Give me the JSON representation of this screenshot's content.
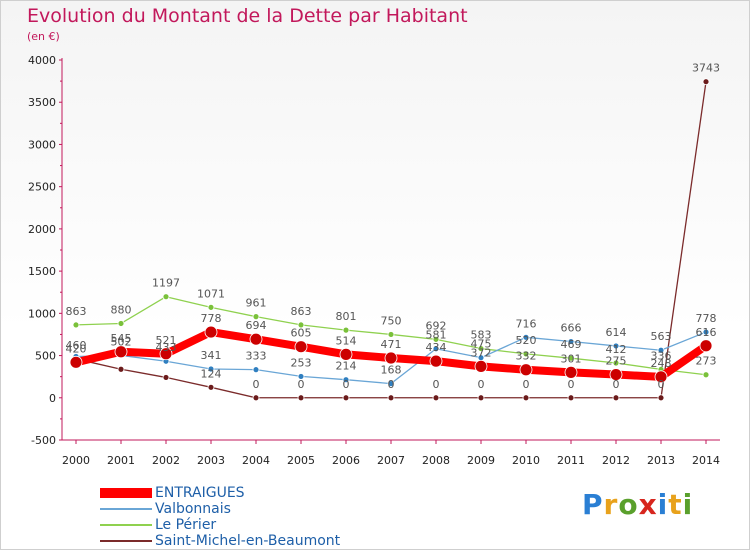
{
  "title": "Evolution du Montant de la Dette par Habitant",
  "subtitle": "(en €)",
  "logo": {
    "text": "Proxiti",
    "letters": [
      "P",
      "r",
      "o",
      "x",
      "i",
      "t",
      "i"
    ],
    "colors": [
      "#2a7fd4",
      "#e8a21c",
      "#5aa02c",
      "#d7261e",
      "#2a7fd4",
      "#e8a21c",
      "#5aa02c"
    ]
  },
  "chart_data": {
    "type": "line",
    "xlabel": "",
    "ylabel": "",
    "x": [
      "2000",
      "2001",
      "2002",
      "2003",
      "2004",
      "2005",
      "2006",
      "2007",
      "2008",
      "2009",
      "2010",
      "2011",
      "2012",
      "2013",
      "2014"
    ],
    "ylim": [
      -500,
      4000
    ],
    "yticks": [
      -500,
      0,
      500,
      1000,
      1500,
      2000,
      2500,
      3000,
      3500,
      4000
    ],
    "grid": false,
    "legend_position": "bottom-left",
    "series": [
      {
        "name": "Saint-Michel-en-Beaumont",
        "color": "#7b2b2b",
        "marker": "#6b1b1b",
        "width": 1.3,
        "radius": 3,
        "values": [
          460,
          338,
          241,
          124,
          0,
          0,
          0,
          0,
          0,
          0,
          0,
          0,
          0,
          0,
          3743
        ],
        "labels": [
          "460",
          "",
          "",
          "124",
          "0",
          "0",
          "0",
          "0",
          "0",
          "0",
          "0",
          "0",
          "0",
          "0",
          "3743"
        ]
      },
      {
        "name": "Le Périer",
        "color": "#8fd14f",
        "marker": "#7ac13a",
        "width": 1.3,
        "radius": 3,
        "values": [
          863,
          880,
          1197,
          1071,
          961,
          863,
          801,
          750,
          692,
          583,
          520,
          469,
          412,
          336,
          273
        ],
        "labels": [
          "863",
          "880",
          "1197",
          "1071",
          "961",
          "863",
          "801",
          "750",
          "692",
          "583",
          "520",
          "469",
          "412",
          "336",
          "273"
        ]
      },
      {
        "name": "Valbonnais",
        "color": "#6aa6d6",
        "marker": "#2f7fc0",
        "width": 1.3,
        "radius": 3,
        "values": [
          489,
          502,
          433,
          341,
          333,
          253,
          214,
          168,
          581,
          475,
          716,
          666,
          614,
          563,
          778
        ],
        "labels": [
          "",
          "502",
          "433",
          "341",
          "333",
          "253",
          "214",
          "168",
          "581",
          "475",
          "716",
          "666",
          "614",
          "563",
          "778"
        ]
      },
      {
        "name": "ENTRAIGUES",
        "color": "#ff0000",
        "marker": "#cc0000",
        "width": 8,
        "radius": 6,
        "values": [
          420,
          545,
          521,
          778,
          694,
          605,
          514,
          471,
          434,
          372,
          332,
          301,
          275,
          248,
          616
        ],
        "labels": [
          "420",
          "545",
          "521",
          "778",
          "694",
          "605",
          "514",
          "471",
          "434",
          "372",
          "332",
          "301",
          "275",
          "248",
          "616"
        ]
      }
    ]
  }
}
